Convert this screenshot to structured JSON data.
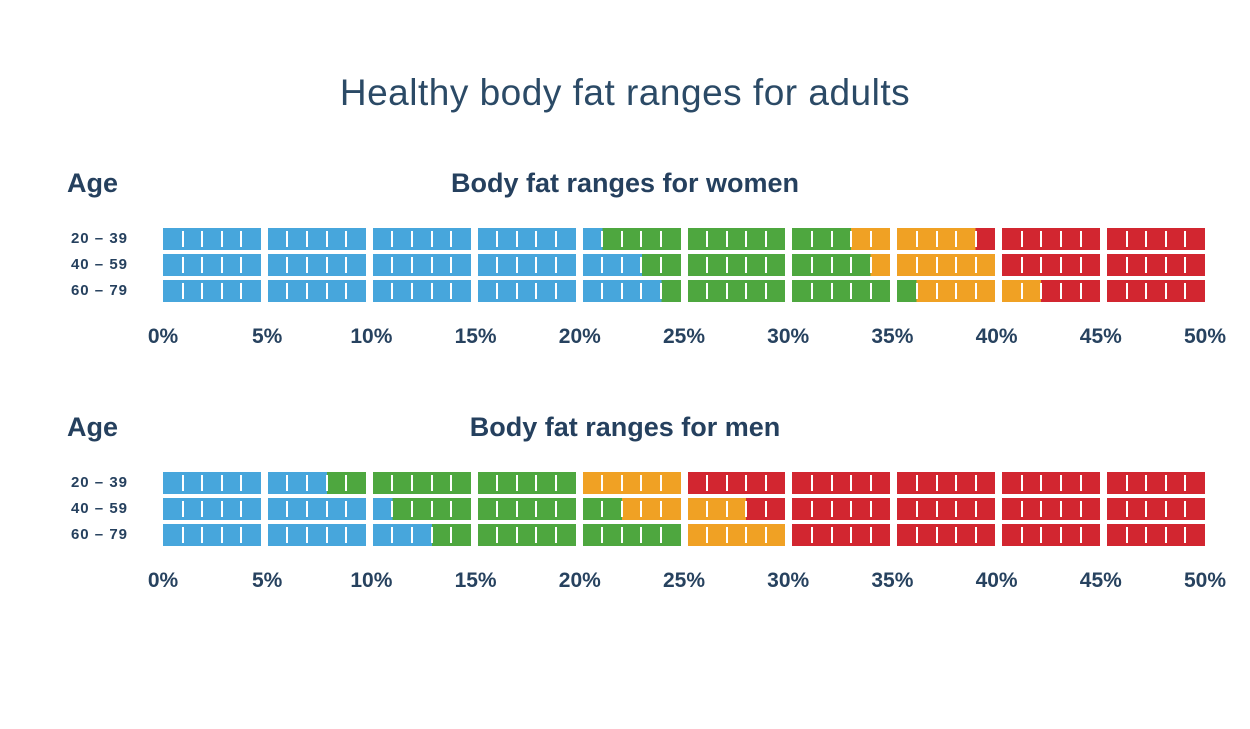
{
  "title": "Healthy body fat ranges for adults",
  "colors": {
    "navy_text": "#25405e",
    "title_text": "#2b4a66",
    "blue": "#47a6dc",
    "green": "#4ea73f",
    "orange": "#f0a124",
    "red": "#d22630",
    "tick": "#ffffff",
    "background": "#ffffff"
  },
  "chart_data": [
    {
      "type": "bar",
      "variant": "stacked-range-scale",
      "title": "Body fat ranges for women",
      "age_label": "Age",
      "xlim": [
        0,
        50
      ],
      "block_size": 5,
      "x_tick_labels": [
        "0%",
        "5%",
        "10%",
        "15%",
        "20%",
        "25%",
        "30%",
        "35%",
        "40%",
        "45%",
        "50%"
      ],
      "categories": [
        "20 – 39",
        "40 – 59",
        "60 – 79"
      ],
      "series": [
        {
          "age": "20 – 39",
          "segments": [
            {
              "color": "blue",
              "from": 0,
              "to": 21
            },
            {
              "color": "green",
              "from": 21,
              "to": 33
            },
            {
              "color": "orange",
              "from": 33,
              "to": 39
            },
            {
              "color": "red",
              "from": 39,
              "to": 50
            }
          ]
        },
        {
          "age": "40 – 59",
          "segments": [
            {
              "color": "blue",
              "from": 0,
              "to": 23
            },
            {
              "color": "green",
              "from": 23,
              "to": 34
            },
            {
              "color": "orange",
              "from": 34,
              "to": 40
            },
            {
              "color": "red",
              "from": 40,
              "to": 50
            }
          ]
        },
        {
          "age": "60 – 79",
          "segments": [
            {
              "color": "blue",
              "from": 0,
              "to": 24
            },
            {
              "color": "green",
              "from": 24,
              "to": 36
            },
            {
              "color": "orange",
              "from": 36,
              "to": 42
            },
            {
              "color": "red",
              "from": 42,
              "to": 50
            }
          ]
        }
      ]
    },
    {
      "type": "bar",
      "variant": "stacked-range-scale",
      "title": "Body fat ranges for men",
      "age_label": "Age",
      "xlim": [
        0,
        50
      ],
      "block_size": 5,
      "x_tick_labels": [
        "0%",
        "5%",
        "10%",
        "15%",
        "20%",
        "25%",
        "30%",
        "35%",
        "40%",
        "45%",
        "50%"
      ],
      "categories": [
        "20 – 39",
        "40 – 59",
        "60 – 79"
      ],
      "series": [
        {
          "age": "20 – 39",
          "segments": [
            {
              "color": "blue",
              "from": 0,
              "to": 8
            },
            {
              "color": "green",
              "from": 8,
              "to": 20
            },
            {
              "color": "orange",
              "from": 20,
              "to": 25
            },
            {
              "color": "red",
              "from": 25,
              "to": 50
            }
          ]
        },
        {
          "age": "40 – 59",
          "segments": [
            {
              "color": "blue",
              "from": 0,
              "to": 11
            },
            {
              "color": "green",
              "from": 11,
              "to": 22
            },
            {
              "color": "orange",
              "from": 22,
              "to": 28
            },
            {
              "color": "red",
              "from": 28,
              "to": 50
            }
          ]
        },
        {
          "age": "60 – 79",
          "segments": [
            {
              "color": "blue",
              "from": 0,
              "to": 13
            },
            {
              "color": "green",
              "from": 13,
              "to": 25
            },
            {
              "color": "orange",
              "from": 25,
              "to": 30
            },
            {
              "color": "red",
              "from": 30,
              "to": 50
            }
          ]
        }
      ]
    }
  ]
}
